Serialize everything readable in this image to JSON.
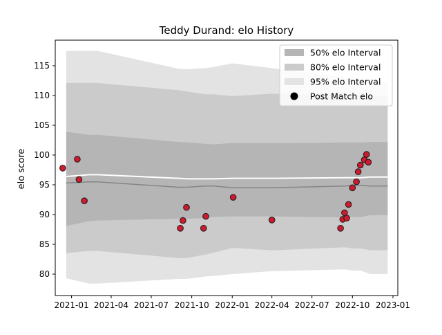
{
  "chart_data": {
    "type": "scatter",
    "title": "Teddy Durand: elo History",
    "xlabel": "",
    "ylabel": "elo score",
    "xlim": [
      "2020-11-25",
      "2023-01-12"
    ],
    "ylim": [
      76.4,
      119.3
    ],
    "x_ticks": [
      "2021-01",
      "2021-04",
      "2021-07",
      "2021-10",
      "2022-01",
      "2022-04",
      "2022-07",
      "2022-10",
      "2023-01"
    ],
    "y_ticks": [
      80,
      85,
      90,
      95,
      100,
      105,
      110,
      115
    ],
    "legend": {
      "position": "top-right",
      "entries": [
        "50% elo Interval",
        "80% elo Interval",
        "95% elo Interval",
        "Post Match elo"
      ]
    },
    "series_style": {
      "band_95_color": "#e3e3e3",
      "band_80_color": "#cbcbcb",
      "band_50_color": "#b5b5b5",
      "mean_line_color": "#ffffff",
      "lower_line_color": "#858585",
      "point_fill": "#cc1a2e",
      "point_edge": "#1a1a1a"
    },
    "bands": {
      "dates": [
        "2020-12-20",
        "2021-02-10",
        "2021-03-01",
        "2021-09-01",
        "2021-09-20",
        "2021-11-01",
        "2021-11-20",
        "2022-01-01",
        "2022-04-01",
        "2022-09-15",
        "2022-10-01",
        "2022-10-20",
        "2022-11-10",
        "2022-12-20"
      ],
      "p95_low": [
        79.3,
        78.4,
        78.4,
        79.2,
        79.2,
        79.6,
        79.7,
        80.0,
        80.5,
        80.8,
        80.6,
        80.6,
        80.0,
        80.0
      ],
      "p95_high": [
        117.5,
        117.5,
        117.5,
        114.5,
        114.4,
        114.6,
        114.8,
        115.4,
        114.6,
        113.0,
        112.6,
        112.5,
        112.3,
        112.3
      ],
      "p80_low": [
        83.5,
        83.9,
        83.9,
        82.7,
        82.7,
        83.3,
        83.6,
        84.4,
        84.0,
        84.5,
        84.3,
        84.3,
        84.0,
        84.0
      ],
      "p80_high": [
        112.1,
        112.1,
        112.1,
        110.9,
        110.7,
        110.2,
        110.2,
        109.9,
        110.3,
        110.0,
        109.9,
        109.9,
        109.9,
        109.9
      ],
      "p50_low": [
        88.1,
        88.9,
        89.0,
        89.3,
        89.3,
        89.4,
        89.6,
        89.7,
        89.7,
        89.5,
        89.6,
        89.6,
        89.9,
        89.9
      ],
      "p50_high": [
        103.9,
        103.4,
        103.4,
        102.2,
        102.1,
        101.9,
        101.8,
        102.0,
        102.0,
        102.1,
        102.1,
        102.1,
        102.2,
        102.2
      ],
      "mean": [
        96.4,
        96.7,
        96.7,
        96.1,
        96.0,
        96.0,
        96.0,
        96.1,
        96.1,
        96.2,
        96.2,
        96.2,
        96.3,
        96.3
      ],
      "lower": [
        95.3,
        95.5,
        95.5,
        94.6,
        94.6,
        94.8,
        94.8,
        94.5,
        94.5,
        94.8,
        94.9,
        94.9,
        94.8,
        94.8
      ]
    },
    "points": [
      {
        "x": "2020-12-12",
        "y": 97.8
      },
      {
        "x": "2021-01-14",
        "y": 99.3
      },
      {
        "x": "2021-01-18",
        "y": 95.9
      },
      {
        "x": "2021-01-30",
        "y": 92.3
      },
      {
        "x": "2021-09-05",
        "y": 87.7
      },
      {
        "x": "2021-09-11",
        "y": 89.0
      },
      {
        "x": "2021-09-19",
        "y": 91.2
      },
      {
        "x": "2021-10-28",
        "y": 87.7
      },
      {
        "x": "2021-11-02",
        "y": 89.7
      },
      {
        "x": "2022-01-03",
        "y": 92.9
      },
      {
        "x": "2022-04-01",
        "y": 89.1
      },
      {
        "x": "2022-09-04",
        "y": 87.7
      },
      {
        "x": "2022-09-09",
        "y": 89.2
      },
      {
        "x": "2022-09-13",
        "y": 90.3
      },
      {
        "x": "2022-09-18",
        "y": 89.4
      },
      {
        "x": "2022-09-22",
        "y": 91.7
      },
      {
        "x": "2022-10-01",
        "y": 94.5
      },
      {
        "x": "2022-10-10",
        "y": 95.5
      },
      {
        "x": "2022-10-14",
        "y": 97.2
      },
      {
        "x": "2022-10-19",
        "y": 98.3
      },
      {
        "x": "2022-10-28",
        "y": 99.2
      },
      {
        "x": "2022-11-02",
        "y": 100.1
      },
      {
        "x": "2022-11-06",
        "y": 98.8
      }
    ]
  }
}
